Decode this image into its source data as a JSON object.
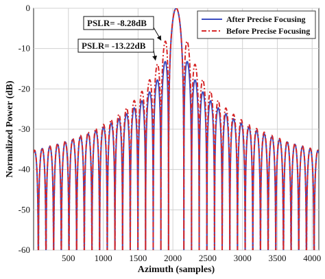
{
  "chart_data": {
    "type": "line",
    "title": "",
    "xlabel": "Azimuth (samples)",
    "ylabel": "Normalized Power (dB)",
    "xlim": [
      0,
      4096
    ],
    "ylim": [
      -60,
      0
    ],
    "xticks": [
      500,
      1000,
      1500,
      2000,
      2500,
      3000,
      3500,
      4000
    ],
    "yticks": [
      0,
      -10,
      -20,
      -30,
      -40,
      -50,
      -60
    ],
    "xtick_labels": [
      "500",
      "1000",
      "1500",
      "2000",
      "2500",
      "3000",
      "3500",
      "4000"
    ],
    "ytick_labels": [
      "0",
      "-10",
      "-20",
      "-30",
      "-40",
      "-50",
      "-60"
    ],
    "grid": true,
    "legend_position": "top-right",
    "series": [
      {
        "name": "After Precise Focusing",
        "color": "#3b4cc0",
        "style": "solid",
        "center": 2048,
        "null_spacing": 110,
        "peak_sidelobe_db": -13.22
      },
      {
        "name": "Before Precise Focusing",
        "color": "#d62728",
        "style": "dash-dot",
        "center": 2048,
        "null_spacing": 110,
        "peak_sidelobe_db": -8.28
      }
    ],
    "annotations": [
      {
        "text": "PSLR=  -8.28dB",
        "target_x": 1830,
        "target_y": -8.28
      },
      {
        "text": "PSLR=  -13.22dB",
        "target_x": 1750,
        "target_y": -13.22
      }
    ]
  }
}
